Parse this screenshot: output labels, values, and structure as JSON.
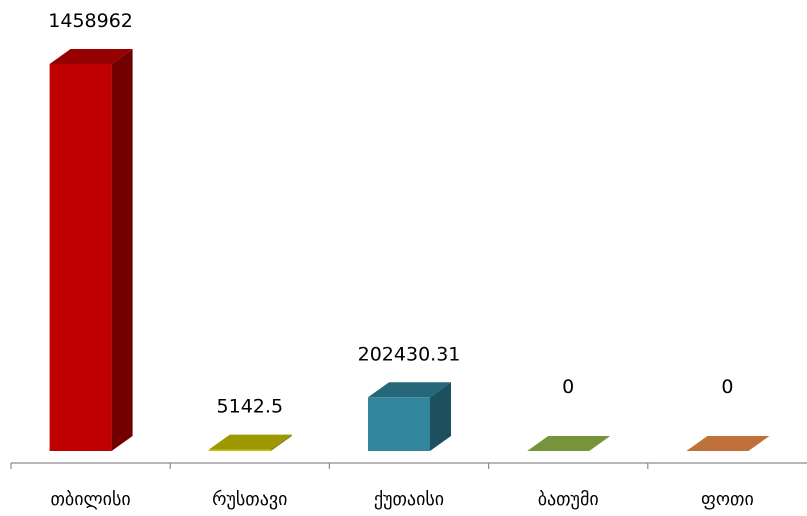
{
  "chart_data": {
    "type": "bar",
    "title": "",
    "xlabel": "",
    "ylabel": "",
    "categories": [
      "თბილისი",
      "რუსთავი",
      "ქუთაისი",
      "ბათუმი",
      "ფოთი"
    ],
    "values": [
      1458962,
      5142.5,
      202430.31,
      0,
      0
    ],
    "value_labels": [
      "1458962",
      "5142.5",
      "202430.31",
      "0",
      "0"
    ],
    "colors": [
      "#C00000",
      "#C9C200",
      "#31859C",
      "#77933C",
      "#C0703A"
    ],
    "ylim": [
      0,
      1458962
    ],
    "grid": false,
    "legend": "none",
    "style": "3d-column"
  }
}
